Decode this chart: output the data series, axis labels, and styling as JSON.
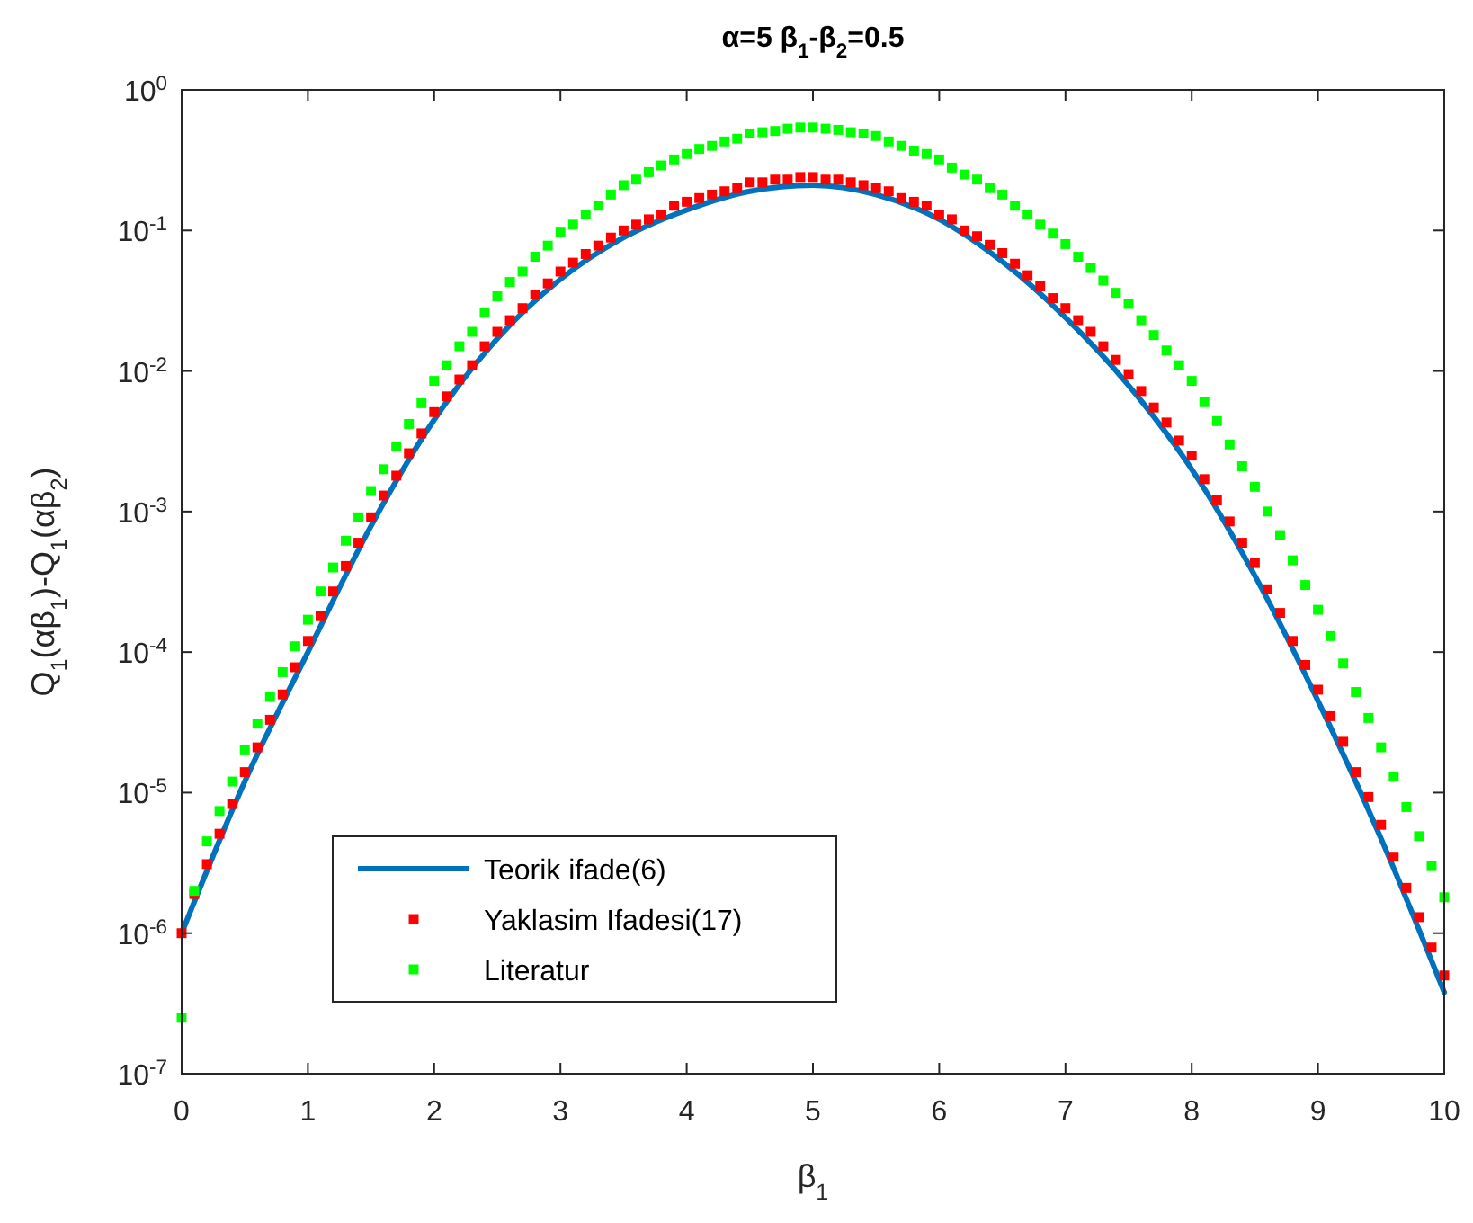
{
  "chart_data": {
    "type": "line",
    "title": "α=5 β$_{1}$-β$_{2}$=0.5",
    "xlabel": "β$_{1}$",
    "ylabel": "Q$_{1}$(αβ$_{1}$)-Q$_{1}$(αβ$_{2}$)",
    "log": "y",
    "xlim": [
      0,
      10
    ],
    "xticks": [
      0,
      1,
      2,
      3,
      4,
      5,
      6,
      7,
      8,
      9,
      10
    ],
    "ylim": [
      1e-07,
      1
    ],
    "yticks": [
      {
        "value": 1e-07,
        "label": "10$^{-7}$"
      },
      {
        "value": 1e-06,
        "label": "10$^{-6}$"
      },
      {
        "value": 1e-05,
        "label": "10$^{-5}$"
      },
      {
        "value": 0.0001,
        "label": "10$^{-4}$"
      },
      {
        "value": 0.001,
        "label": "10$^{-3}$"
      },
      {
        "value": 0.01,
        "label": "10$^{-2}$"
      },
      {
        "value": 0.1,
        "label": "10$^{-1}$"
      },
      {
        "value": 1,
        "label": "10$^{0}$"
      }
    ],
    "grid": false,
    "legend": "bottom left",
    "series": [
      {
        "name": "Teorik ifade(6)",
        "color": "#0072bd",
        "line_style": "solid",
        "marker": "none",
        "x": [
          0,
          0.5,
          1,
          1.5,
          2,
          2.5,
          3,
          3.5,
          4,
          4.5,
          5,
          5.5,
          6,
          6.5,
          7,
          7.5,
          8,
          8.5,
          9,
          9.5,
          10
        ],
        "values": [
          1e-06,
          1.2e-05,
          0.0001,
          0.00079,
          0.0045,
          0.017,
          0.045,
          0.089,
          0.14,
          0.19,
          0.21,
          0.18,
          0.12,
          0.06,
          0.024,
          0.0079,
          0.002,
          0.00035,
          4.5e-05,
          4.7e-06,
          3.8e-07
        ]
      },
      {
        "name": "Yaklasim Ifadesi(17)",
        "type": "scatter",
        "color": "#ff0000",
        "marker": "square",
        "x": [
          0,
          0.1,
          0.2,
          0.3,
          0.4,
          0.5,
          0.6,
          0.7,
          0.8,
          0.9,
          1,
          1.1,
          1.2,
          1.3,
          1.4,
          1.5,
          1.6,
          1.7,
          1.8,
          1.9,
          2,
          2.1,
          2.2,
          2.3,
          2.4,
          2.5,
          2.6,
          2.7,
          2.8,
          2.9,
          3,
          3.1,
          3.2,
          3.3,
          3.4,
          3.5,
          3.6,
          3.7,
          3.8,
          3.9,
          4,
          4.1,
          4.2,
          4.3,
          4.4,
          4.5,
          4.6,
          4.7,
          4.8,
          4.9,
          5,
          5.1,
          5.2,
          5.3,
          5.4,
          5.5,
          5.6,
          5.7,
          5.8,
          5.9,
          6,
          6.1,
          6.2,
          6.3,
          6.4,
          6.5,
          6.6,
          6.7,
          6.8,
          6.9,
          7,
          7.1,
          7.2,
          7.3,
          7.4,
          7.5,
          7.6,
          7.7,
          7.8,
          7.9,
          8,
          8.1,
          8.2,
          8.3,
          8.4,
          8.5,
          8.6,
          8.7,
          8.8,
          8.9,
          9,
          9.1,
          9.2,
          9.3,
          9.4,
          9.5,
          9.6,
          9.7,
          9.8,
          9.9,
          10
        ],
        "values": [
          1e-06,
          1.9e-06,
          3.1e-06,
          5.1e-06,
          8.3e-06,
          1.4e-05,
          2.1e-05,
          3.3e-05,
          5e-05,
          7.8e-05,
          0.00012,
          0.00018,
          0.00027,
          0.00041,
          0.0006,
          0.00091,
          0.0013,
          0.0018,
          0.0026,
          0.0036,
          0.0051,
          0.0066,
          0.0087,
          0.011,
          0.015,
          0.019,
          0.023,
          0.028,
          0.035,
          0.042,
          0.051,
          0.059,
          0.068,
          0.078,
          0.089,
          0.1,
          0.11,
          0.12,
          0.13,
          0.15,
          0.16,
          0.17,
          0.18,
          0.19,
          0.2,
          0.22,
          0.22,
          0.23,
          0.23,
          0.24,
          0.24,
          0.23,
          0.23,
          0.22,
          0.21,
          0.2,
          0.19,
          0.17,
          0.16,
          0.15,
          0.13,
          0.12,
          0.1,
          0.091,
          0.079,
          0.069,
          0.058,
          0.048,
          0.04,
          0.033,
          0.028,
          0.023,
          0.019,
          0.015,
          0.012,
          0.0095,
          0.0072,
          0.0055,
          0.0043,
          0.0032,
          0.0025,
          0.0017,
          0.0012,
          0.00085,
          0.0006,
          0.00043,
          0.00028,
          0.00019,
          0.00012,
          8.1e-05,
          5.4e-05,
          3.5e-05,
          2.3e-05,
          1.4e-05,
          9.3e-06,
          5.9e-06,
          3.5e-06,
          2.1e-06,
          1.3e-06,
          7.9e-07,
          5e-07
        ]
      },
      {
        "name": "Literatur",
        "type": "scatter",
        "color": "#00ff00",
        "marker": "square",
        "x": [
          0,
          0.1,
          0.2,
          0.3,
          0.4,
          0.5,
          0.6,
          0.7,
          0.8,
          0.9,
          1,
          1.1,
          1.2,
          1.3,
          1.4,
          1.5,
          1.6,
          1.7,
          1.8,
          1.9,
          2,
          2.1,
          2.2,
          2.3,
          2.4,
          2.5,
          2.6,
          2.7,
          2.8,
          2.9,
          3,
          3.1,
          3.2,
          3.3,
          3.4,
          3.5,
          3.6,
          3.7,
          3.8,
          3.9,
          4,
          4.1,
          4.2,
          4.3,
          4.4,
          4.5,
          4.6,
          4.7,
          4.8,
          4.9,
          5,
          5.1,
          5.2,
          5.3,
          5.4,
          5.5,
          5.6,
          5.7,
          5.8,
          5.9,
          6,
          6.1,
          6.2,
          6.3,
          6.4,
          6.5,
          6.6,
          6.7,
          6.8,
          6.9,
          7,
          7.1,
          7.2,
          7.3,
          7.4,
          7.5,
          7.6,
          7.7,
          7.8,
          7.9,
          8,
          8.1,
          8.2,
          8.3,
          8.4,
          8.5,
          8.6,
          8.7,
          8.8,
          8.9,
          9,
          9.1,
          9.2,
          9.3,
          9.4,
          9.5,
          9.6,
          9.7,
          9.8,
          9.9,
          10
        ],
        "values": [
          2.5e-07,
          2e-06,
          4.5e-06,
          7.4e-06,
          1.2e-05,
          2e-05,
          3.1e-05,
          4.8e-05,
          7.2e-05,
          0.00011,
          0.00017,
          0.00027,
          0.0004,
          0.00062,
          0.00091,
          0.0014,
          0.002,
          0.0029,
          0.0042,
          0.0059,
          0.0085,
          0.011,
          0.015,
          0.019,
          0.026,
          0.034,
          0.043,
          0.051,
          0.065,
          0.078,
          0.098,
          0.11,
          0.13,
          0.15,
          0.18,
          0.21,
          0.23,
          0.26,
          0.29,
          0.32,
          0.35,
          0.38,
          0.4,
          0.43,
          0.45,
          0.49,
          0.5,
          0.51,
          0.53,
          0.54,
          0.54,
          0.53,
          0.52,
          0.5,
          0.49,
          0.47,
          0.43,
          0.4,
          0.37,
          0.35,
          0.32,
          0.28,
          0.25,
          0.23,
          0.2,
          0.18,
          0.15,
          0.13,
          0.11,
          0.095,
          0.08,
          0.065,
          0.054,
          0.044,
          0.036,
          0.03,
          0.023,
          0.018,
          0.014,
          0.011,
          0.0085,
          0.006,
          0.0044,
          0.003,
          0.0021,
          0.0015,
          0.001,
          0.00068,
          0.00045,
          0.0003,
          0.0002,
          0.00013,
          8.3e-05,
          5.2e-05,
          3.4e-05,
          2.1e-05,
          1.3e-05,
          7.9e-06,
          4.9e-06,
          3e-06,
          1.8e-06
        ]
      }
    ]
  }
}
